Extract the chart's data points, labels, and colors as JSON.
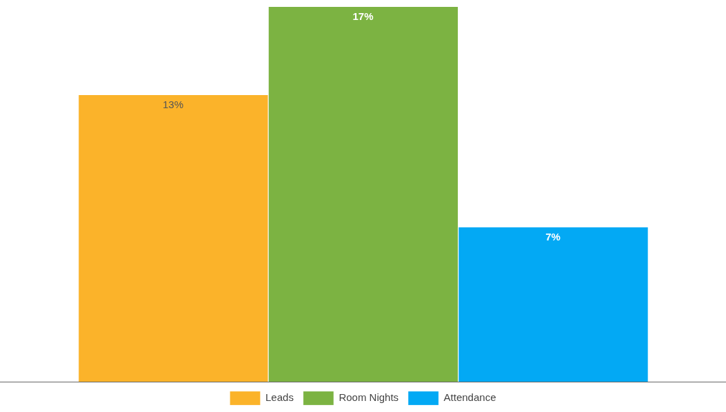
{
  "chart_data": {
    "type": "bar",
    "categories": [
      null
    ],
    "series": [
      {
        "name": "Leads",
        "color": "#fbb32a",
        "values": [
          13
        ],
        "value_labels": [
          "13%"
        ]
      },
      {
        "name": "Room Nights",
        "color": "#7cb342",
        "values": [
          17
        ],
        "value_labels": [
          "17%"
        ]
      },
      {
        "name": "Attendance",
        "color": "#03a9f4",
        "values": [
          7
        ],
        "value_labels": [
          "7%"
        ]
      }
    ],
    "legend": "bottom",
    "grid": false
  }
}
